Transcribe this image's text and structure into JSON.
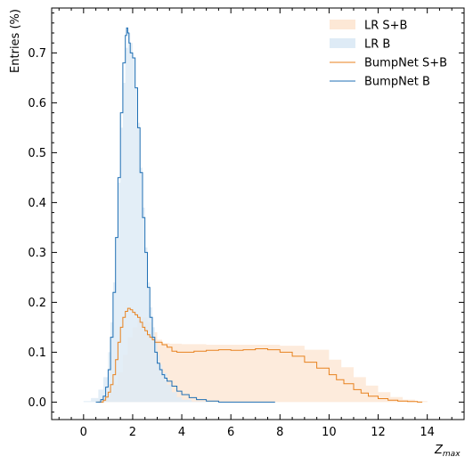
{
  "chart_data": {
    "type": "area",
    "xlabel": "Z",
    "xlabel_sub": "max",
    "ylabel": "Entries (%)",
    "xlim": [
      -1.3,
      15.5
    ],
    "ylim": [
      -0.035,
      0.79
    ],
    "xticks": [
      0,
      2,
      4,
      6,
      8,
      10,
      12,
      14
    ],
    "xtick_labels": [
      "0",
      "2",
      "4",
      "6",
      "8",
      "10",
      "12",
      "14"
    ],
    "yticks": [
      0.0,
      0.1,
      0.2,
      0.3,
      0.4,
      0.5,
      0.6,
      0.7
    ],
    "ytick_labels": [
      "0.0",
      "0.1",
      "0.2",
      "0.3",
      "0.4",
      "0.5",
      "0.6",
      "0.7"
    ],
    "legend_position": "top-right",
    "grid": false,
    "series": [
      {
        "name": "LR S+B",
        "style": "filled-step",
        "color": "#fde8d6",
        "x": [
          -0.4,
          0.2,
          0.5,
          0.8,
          1.0,
          1.2,
          1.4,
          1.6,
          1.8,
          2.0,
          2.2,
          2.4,
          2.6,
          2.8,
          3.0,
          3.2,
          3.5,
          4.0,
          5.0,
          6.0,
          7.0,
          8.0,
          9.0,
          10.0,
          10.5,
          11.0,
          11.5,
          12.0,
          12.5,
          13.0,
          13.5,
          14.0,
          14.7
        ],
        "y": [
          0.0,
          0.0,
          0.003,
          0.01,
          0.02,
          0.035,
          0.06,
          0.095,
          0.13,
          0.15,
          0.165,
          0.17,
          0.16,
          0.14,
          0.125,
          0.118,
          0.117,
          0.116,
          0.115,
          0.115,
          0.115,
          0.113,
          0.105,
          0.085,
          0.07,
          0.05,
          0.033,
          0.02,
          0.01,
          0.005,
          0.002,
          0.0,
          0.0
        ]
      },
      {
        "name": "LR B",
        "style": "filled-step",
        "color": "#deebf6",
        "x": [
          -0.5,
          0.0,
          0.3,
          0.6,
          0.8,
          1.0,
          1.1,
          1.2,
          1.3,
          1.4,
          1.5,
          1.6,
          1.7,
          1.8,
          1.9,
          2.0,
          2.1,
          2.2,
          2.3,
          2.4,
          2.5,
          2.6,
          2.7,
          2.8,
          2.9,
          3.0,
          3.1,
          3.2,
          3.4,
          3.6,
          3.8,
          4.0,
          4.4,
          5.0
        ],
        "y": [
          0.0,
          0.002,
          0.008,
          0.025,
          0.05,
          0.1,
          0.16,
          0.24,
          0.33,
          0.44,
          0.55,
          0.64,
          0.71,
          0.74,
          0.72,
          0.69,
          0.63,
          0.56,
          0.47,
          0.39,
          0.31,
          0.24,
          0.19,
          0.15,
          0.12,
          0.095,
          0.075,
          0.058,
          0.035,
          0.02,
          0.01,
          0.005,
          0.001,
          0.0
        ]
      },
      {
        "name": "BumpNet S+B",
        "style": "step",
        "color": "#e8821e",
        "x": [
          0.6,
          0.8,
          0.9,
          1.0,
          1.1,
          1.2,
          1.3,
          1.4,
          1.5,
          1.6,
          1.7,
          1.8,
          1.9,
          2.0,
          2.1,
          2.2,
          2.3,
          2.4,
          2.5,
          2.6,
          2.7,
          2.8,
          2.9,
          3.0,
          3.2,
          3.4,
          3.6,
          3.8,
          4.0,
          4.5,
          5.0,
          5.5,
          6.0,
          6.5,
          7.0,
          7.5,
          8.0,
          8.5,
          9.0,
          9.5,
          10.0,
          10.3,
          10.6,
          11.0,
          11.3,
          11.6,
          12.0,
          12.4,
          12.8,
          13.2,
          13.6,
          13.8
        ],
        "y": [
          0.0,
          0.004,
          0.01,
          0.02,
          0.035,
          0.055,
          0.085,
          0.12,
          0.15,
          0.17,
          0.182,
          0.188,
          0.185,
          0.18,
          0.175,
          0.17,
          0.16,
          0.15,
          0.143,
          0.135,
          0.13,
          0.125,
          0.12,
          0.12,
          0.115,
          0.11,
          0.102,
          0.1,
          0.1,
          0.102,
          0.104,
          0.105,
          0.104,
          0.105,
          0.107,
          0.105,
          0.1,
          0.092,
          0.08,
          0.068,
          0.055,
          0.045,
          0.037,
          0.025,
          0.018,
          0.012,
          0.007,
          0.004,
          0.002,
          0.001,
          0.0,
          0.0
        ]
      },
      {
        "name": "BumpNet B",
        "style": "step",
        "color": "#1f6fb4",
        "x": [
          0.5,
          0.7,
          0.8,
          0.9,
          1.0,
          1.1,
          1.2,
          1.3,
          1.4,
          1.5,
          1.6,
          1.7,
          1.75,
          1.8,
          1.85,
          1.9,
          1.95,
          2.0,
          2.1,
          2.2,
          2.3,
          2.4,
          2.5,
          2.6,
          2.7,
          2.8,
          2.9,
          3.0,
          3.1,
          3.2,
          3.3,
          3.4,
          3.6,
          3.8,
          4.0,
          4.3,
          4.6,
          5.0,
          5.5,
          7.8
        ],
        "y": [
          0.0,
          0.005,
          0.012,
          0.03,
          0.065,
          0.13,
          0.22,
          0.33,
          0.45,
          0.58,
          0.68,
          0.735,
          0.75,
          0.74,
          0.72,
          0.7,
          0.7,
          0.69,
          0.63,
          0.55,
          0.46,
          0.37,
          0.3,
          0.23,
          0.17,
          0.13,
          0.1,
          0.078,
          0.065,
          0.055,
          0.048,
          0.042,
          0.032,
          0.022,
          0.015,
          0.009,
          0.005,
          0.002,
          0.0,
          0.0
        ]
      }
    ],
    "legend": [
      {
        "label": "LR S+B",
        "kind": "patch",
        "color": "#fde8d6"
      },
      {
        "label": "LR B",
        "kind": "patch",
        "color": "#deebf6"
      },
      {
        "label": "BumpNet S+B",
        "kind": "line",
        "color": "#e8821e"
      },
      {
        "label": "BumpNet B",
        "kind": "line",
        "color": "#1f6fb4"
      }
    ]
  }
}
